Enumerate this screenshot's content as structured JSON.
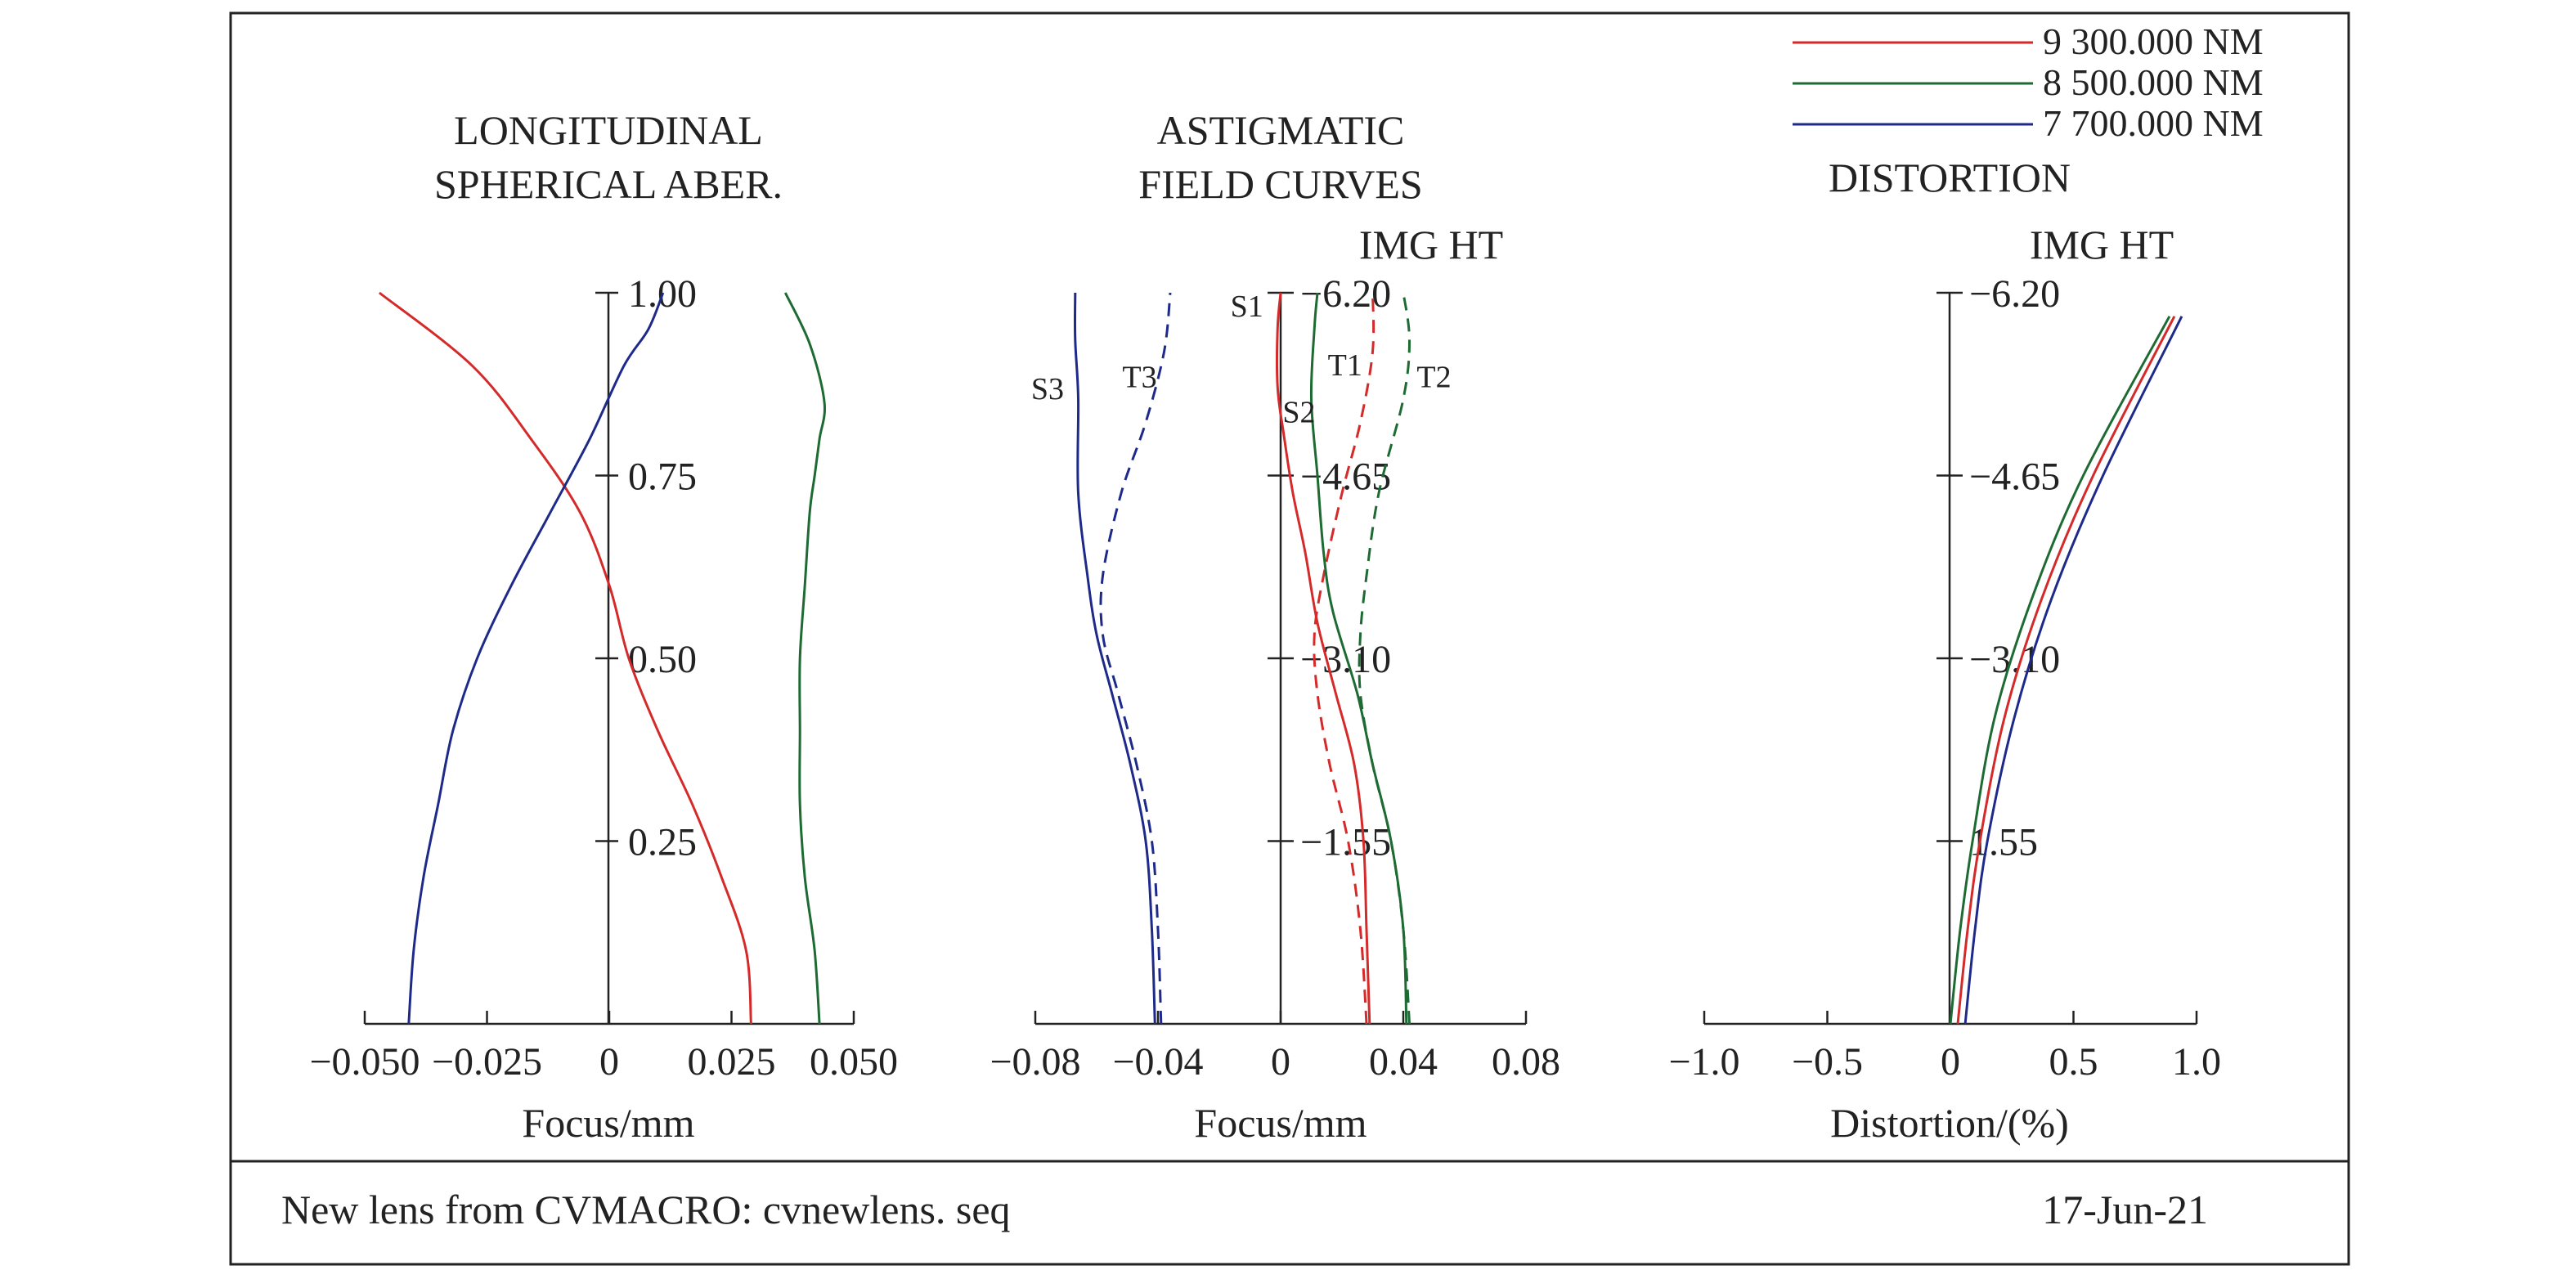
{
  "colors": {
    "red": "#d42a2a",
    "green": "#1d6b33",
    "blue": "#1e2a8a",
    "ink": "#222222"
  },
  "legend": [
    {
      "label": "9 300.000 NM",
      "color": "#d42a2a"
    },
    {
      "label": "8 500.000 NM",
      "color": "#1d6b33"
    },
    {
      "label": "7 700.000 NM",
      "color": "#1e2a8a"
    }
  ],
  "footer": {
    "left": "New lens from CVMACRO: cvnewlens. seq",
    "right": "17-Jun-21"
  },
  "chart_data": [
    {
      "type": "line",
      "title_lines": [
        "LONGITUDINAL",
        "SPHERICAL ABER."
      ],
      "xlabel": "Focus/mm",
      "xlim": [
        -0.05,
        0.05
      ],
      "ylim": [
        0,
        1
      ],
      "xticks": [
        -0.05,
        -0.025,
        0,
        0.025,
        0.05
      ],
      "xtick_labels": [
        "−0.050",
        "−0.025",
        "0",
        "0.025",
        "0.050"
      ],
      "yticks": [
        0.25,
        0.5,
        0.75,
        1.0
      ],
      "ytick_labels": [
        "0.25",
        "0.50",
        "0.75",
        "1.00"
      ],
      "series": [
        {
          "name": "9 300.000 NM",
          "color": "#d42a2a",
          "x": [
            0.029,
            0.028,
            0.023,
            0.017,
            0.01,
            0.004,
            0.0,
            -0.006,
            -0.016,
            -0.028,
            -0.047
          ],
          "y": [
            0.0,
            0.1,
            0.2,
            0.3,
            0.4,
            0.5,
            0.6,
            0.7,
            0.8,
            0.9,
            1.0
          ]
        },
        {
          "name": "8 500.000 NM",
          "color": "#1d6b33",
          "x": [
            0.043,
            0.042,
            0.04,
            0.039,
            0.039,
            0.039,
            0.04,
            0.041,
            0.042,
            0.043,
            0.044,
            0.041,
            0.036
          ],
          "y": [
            0.0,
            0.1,
            0.2,
            0.3,
            0.4,
            0.5,
            0.6,
            0.7,
            0.75,
            0.8,
            0.85,
            0.93,
            1.0
          ]
        },
        {
          "name": "7 700.000 NM",
          "color": "#1e2a8a",
          "x": [
            -0.041,
            -0.04,
            -0.038,
            -0.035,
            -0.032,
            -0.027,
            -0.02,
            -0.012,
            -0.004,
            0.003,
            0.008,
            0.011
          ],
          "y": [
            0.0,
            0.1,
            0.2,
            0.3,
            0.4,
            0.5,
            0.6,
            0.7,
            0.8,
            0.9,
            0.95,
            1.0
          ]
        }
      ]
    },
    {
      "type": "line",
      "title_lines": [
        "ASTIGMATIC",
        "FIELD CURVES"
      ],
      "axis_title": "IMG HT",
      "xlabel": "Focus/mm",
      "xlim": [
        -0.08,
        0.08
      ],
      "ylim": [
        0,
        6.2
      ],
      "xticks": [
        -0.08,
        -0.04,
        0,
        0.04,
        0.08
      ],
      "xtick_labels": [
        "−0.08",
        "−0.04",
        "0",
        "0.04",
        "0.08"
      ],
      "yticks": [
        1.55,
        3.1,
        4.65,
        6.2
      ],
      "ytick_labels": [
        "−1.55",
        "−3.10",
        "−4.65",
        "−6.20"
      ],
      "series": [
        {
          "name": "S1",
          "color": "#d42a2a",
          "dashed": false,
          "x": [
            0.029,
            0.028,
            0.027,
            0.024,
            0.018,
            0.012,
            0.008,
            0.004,
            0.001,
            -0.001,
            -0.001,
            0.0
          ],
          "y": [
            0.0,
            0.8,
            1.55,
            2.2,
            2.8,
            3.4,
            4.0,
            4.5,
            5.0,
            5.4,
            5.9,
            6.2
          ]
        },
        {
          "name": "T1",
          "color": "#d42a2a",
          "dashed": true,
          "x": [
            0.028,
            0.026,
            0.022,
            0.016,
            0.012,
            0.011,
            0.014,
            0.02,
            0.026,
            0.03,
            0.03
          ],
          "y": [
            0.0,
            0.8,
            1.55,
            2.2,
            2.8,
            3.3,
            3.8,
            4.5,
            5.1,
            5.7,
            6.2
          ]
        },
        {
          "name": "S2",
          "color": "#1d6b33",
          "dashed": false,
          "x": [
            0.041,
            0.04,
            0.036,
            0.03,
            0.025,
            0.017,
            0.014,
            0.012,
            0.01,
            0.011,
            0.012
          ],
          "y": [
            0.0,
            0.8,
            1.55,
            2.2,
            2.8,
            3.5,
            4.0,
            4.65,
            5.3,
            5.9,
            6.2
          ]
        },
        {
          "name": "T2",
          "color": "#1d6b33",
          "dashed": true,
          "x": [
            0.042,
            0.04,
            0.036,
            0.03,
            0.026,
            0.026,
            0.028,
            0.032,
            0.04,
            0.042,
            0.04
          ],
          "y": [
            0.0,
            0.8,
            1.55,
            2.2,
            2.8,
            3.3,
            3.8,
            4.5,
            5.3,
            5.8,
            6.2
          ]
        },
        {
          "name": "S3",
          "color": "#1e2a8a",
          "dashed": false,
          "x": [
            -0.041,
            -0.042,
            -0.044,
            -0.049,
            -0.055,
            -0.06,
            -0.063,
            -0.066,
            -0.066,
            -0.067,
            -0.067
          ],
          "y": [
            0.0,
            0.8,
            1.55,
            2.2,
            2.8,
            3.3,
            3.8,
            4.5,
            5.3,
            5.8,
            6.2
          ]
        },
        {
          "name": "T3",
          "color": "#1e2a8a",
          "dashed": true,
          "x": [
            -0.039,
            -0.04,
            -0.042,
            -0.047,
            -0.053,
            -0.058,
            -0.058,
            -0.052,
            -0.044,
            -0.038,
            -0.036
          ],
          "y": [
            0.0,
            0.8,
            1.55,
            2.2,
            2.8,
            3.3,
            3.8,
            4.5,
            5.1,
            5.7,
            6.2
          ]
        }
      ],
      "curve_labels": [
        {
          "text": "S1",
          "x": -0.011,
          "y": 6.0
        },
        {
          "text": "S2",
          "x": 0.006,
          "y": 5.1
        },
        {
          "text": "T1",
          "x": 0.021,
          "y": 5.5
        },
        {
          "text": "T2",
          "x": 0.05,
          "y": 5.4
        },
        {
          "text": "S3",
          "x": -0.076,
          "y": 5.3
        },
        {
          "text": "T3",
          "x": -0.046,
          "y": 5.4
        }
      ]
    },
    {
      "type": "line",
      "title": "DISTORTION",
      "axis_title": "IMG HT",
      "xlabel": "Distortion/(%)",
      "xlim": [
        -1.0,
        1.0
      ],
      "ylim": [
        0,
        6.2
      ],
      "xticks": [
        -1.0,
        -0.5,
        0,
        0.5,
        1.0
      ],
      "xtick_labels": [
        "−1.0",
        "−0.5",
        "0",
        "0.5",
        "1.0"
      ],
      "yticks": [
        1.55,
        3.1,
        4.65,
        6.2
      ],
      "ytick_labels": [
        "1.55",
        "−3.10",
        "−4.65",
        "−6.20"
      ],
      "series": [
        {
          "name": "9 300.000 NM",
          "color": "#d42a2a",
          "x": [
            0.03,
            0.07,
            0.12,
            0.22,
            0.37,
            0.58,
            0.91
          ],
          "y": [
            0.0,
            0.8,
            1.55,
            2.6,
            3.6,
            4.65,
            6.0
          ]
        },
        {
          "name": "8 500.000 NM",
          "color": "#1d6b33",
          "x": [
            0.0,
            0.04,
            0.09,
            0.18,
            0.33,
            0.54,
            0.89
          ],
          "y": [
            0.0,
            0.8,
            1.55,
            2.6,
            3.6,
            4.65,
            6.0
          ]
        },
        {
          "name": "7 700.000 NM",
          "color": "#1e2a8a",
          "x": [
            0.06,
            0.1,
            0.15,
            0.26,
            0.41,
            0.62,
            0.94
          ],
          "y": [
            0.0,
            0.8,
            1.55,
            2.6,
            3.6,
            4.65,
            6.0
          ]
        }
      ]
    }
  ]
}
